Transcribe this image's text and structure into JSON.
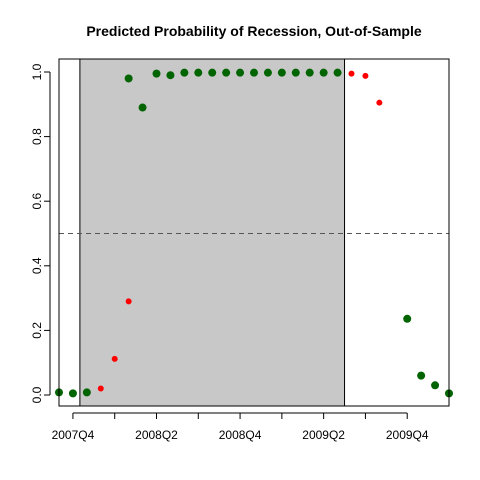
{
  "chart_data": {
    "type": "scatter",
    "title": "Predicted Probability of Recession, Out-of-Sample",
    "xlabel": "",
    "ylabel": "",
    "ylim": [
      0,
      1
    ],
    "yticks": [
      "0.0",
      "0.2",
      "0.4",
      "0.6",
      "0.8",
      "1.0"
    ],
    "x_tick_labels": [
      {
        "label": "2007Q4",
        "month": 10
      },
      {
        "label": "2008Q2",
        "month": 16
      },
      {
        "label": "2008Q4",
        "month": 22
      },
      {
        "label": "2009Q2",
        "month": 28
      },
      {
        "label": "2009Q4",
        "month": 34
      }
    ],
    "x_minor_ticks": [
      10,
      13,
      16,
      19,
      22,
      25,
      28,
      31,
      34
    ],
    "xlim_month": [
      9,
      37
    ],
    "shaded_region_month": [
      11,
      29
    ],
    "threshold": 0.5,
    "colors": {
      "shading": "#c8c8c8",
      "green": "#006400",
      "red": "#ff0000",
      "threshold": "#555555"
    },
    "series": [
      {
        "color_key": "green",
        "size": "large",
        "points": [
          {
            "x": 9,
            "y": 0.008
          },
          {
            "x": 10,
            "y": 0.005
          },
          {
            "x": 11,
            "y": 0.008
          },
          {
            "x": 14,
            "y": 0.98
          },
          {
            "x": 15,
            "y": 0.89
          },
          {
            "x": 16,
            "y": 0.995
          },
          {
            "x": 17,
            "y": 0.99
          },
          {
            "x": 18,
            "y": 0.998
          },
          {
            "x": 19,
            "y": 0.998
          },
          {
            "x": 20,
            "y": 0.998
          },
          {
            "x": 21,
            "y": 0.998
          },
          {
            "x": 22,
            "y": 0.998
          },
          {
            "x": 23,
            "y": 0.998
          },
          {
            "x": 24,
            "y": 0.998
          },
          {
            "x": 25,
            "y": 0.998
          },
          {
            "x": 26,
            "y": 0.998
          },
          {
            "x": 27,
            "y": 0.998
          },
          {
            "x": 28,
            "y": 0.998
          },
          {
            "x": 29,
            "y": 0.998
          },
          {
            "x": 34,
            "y": 0.236
          },
          {
            "x": 35,
            "y": 0.06
          },
          {
            "x": 36,
            "y": 0.03
          },
          {
            "x": 37,
            "y": 0.005
          }
        ]
      },
      {
        "color_key": "red",
        "size": "small",
        "points": [
          {
            "x": 12,
            "y": 0.02
          },
          {
            "x": 13,
            "y": 0.112
          },
          {
            "x": 14,
            "y": 0.29
          },
          {
            "x": 30,
            "y": 0.995
          },
          {
            "x": 31,
            "y": 0.988
          },
          {
            "x": 32,
            "y": 0.905
          }
        ]
      }
    ]
  }
}
